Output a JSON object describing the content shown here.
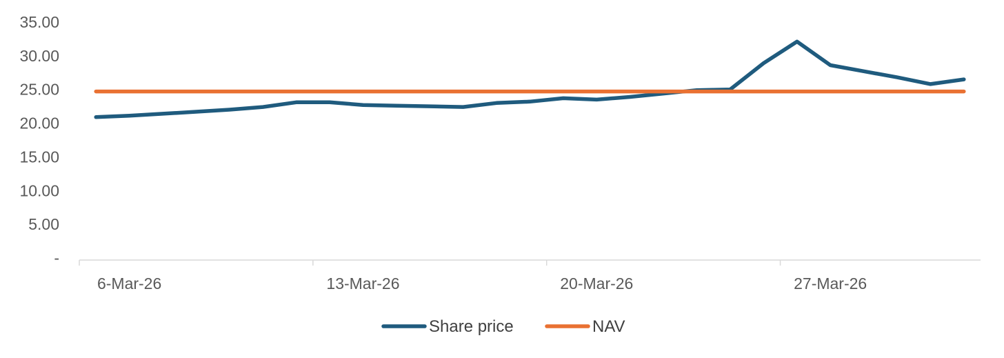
{
  "chart_data": {
    "type": "line",
    "title": "",
    "xlabel": "",
    "ylabel": "",
    "x_ticks": [
      {
        "date": "2026-03-06",
        "label": "6-Mar-26"
      },
      {
        "date": "2026-03-13",
        "label": "13-Mar-26"
      },
      {
        "date": "2026-03-20",
        "label": "20-Mar-26"
      },
      {
        "date": "2026-03-27",
        "label": "27-Mar-26"
      }
    ],
    "xlim": [
      "2026-03-05",
      "2026-03-31"
    ],
    "y_ticks": [
      {
        "value": 0,
        "label": "-"
      },
      {
        "value": 5,
        "label": "5.00"
      },
      {
        "value": 10,
        "label": "10.00"
      },
      {
        "value": 15,
        "label": "15.00"
      },
      {
        "value": 20,
        "label": "20.00"
      },
      {
        "value": 25,
        "label": "25.00"
      },
      {
        "value": 30,
        "label": "30.00"
      },
      {
        "value": 35,
        "label": "35.00"
      }
    ],
    "ylim": [
      0,
      35
    ],
    "grid": false,
    "legend": "bottom",
    "series": [
      {
        "name": "Share price",
        "color": "#1f5b7e",
        "points": [
          {
            "x": "2026-03-05",
            "y": 20.9
          },
          {
            "x": "2026-03-06",
            "y": 21.1
          },
          {
            "x": "2026-03-07",
            "y": 21.4
          },
          {
            "x": "2026-03-08",
            "y": 21.7
          },
          {
            "x": "2026-03-09",
            "y": 22.0
          },
          {
            "x": "2026-03-10",
            "y": 22.4
          },
          {
            "x": "2026-03-11",
            "y": 23.1
          },
          {
            "x": "2026-03-12",
            "y": 23.1
          },
          {
            "x": "2026-03-13",
            "y": 22.7
          },
          {
            "x": "2026-03-14",
            "y": 22.6
          },
          {
            "x": "2026-03-15",
            "y": 22.5
          },
          {
            "x": "2026-03-16",
            "y": 22.4
          },
          {
            "x": "2026-03-17",
            "y": 23.0
          },
          {
            "x": "2026-03-18",
            "y": 23.2
          },
          {
            "x": "2026-03-19",
            "y": 23.7
          },
          {
            "x": "2026-03-20",
            "y": 23.5
          },
          {
            "x": "2026-03-21",
            "y": 23.9
          },
          {
            "x": "2026-03-22",
            "y": 24.4
          },
          {
            "x": "2026-03-23",
            "y": 24.9
          },
          {
            "x": "2026-03-24",
            "y": 25.0
          },
          {
            "x": "2026-03-25",
            "y": 28.9
          },
          {
            "x": "2026-03-26",
            "y": 32.1
          },
          {
            "x": "2026-03-27",
            "y": 28.6
          },
          {
            "x": "2026-03-28",
            "y": 27.7
          },
          {
            "x": "2026-03-29",
            "y": 26.8
          },
          {
            "x": "2026-03-30",
            "y": 25.8
          },
          {
            "x": "2026-03-31",
            "y": 26.5
          }
        ]
      },
      {
        "name": "NAV",
        "color": "#e97132",
        "points": [
          {
            "x": "2026-03-05",
            "y": 24.7
          },
          {
            "x": "2026-03-31",
            "y": 24.7
          }
        ]
      }
    ]
  }
}
